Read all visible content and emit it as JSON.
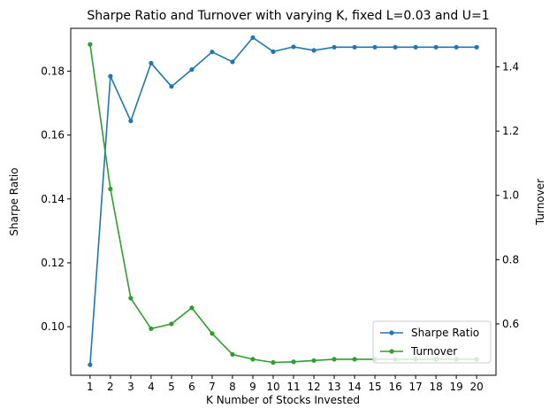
{
  "chart_data": {
    "type": "line",
    "title": "Sharpe Ratio and Turnover with varying K, fixed L=0.03 and U=1",
    "xlabel": "K Number of Stocks Invested",
    "ylabel": "Sharpe Ratio",
    "y2label": "Turnover",
    "x": [
      1,
      2,
      3,
      4,
      5,
      6,
      7,
      8,
      9,
      10,
      11,
      12,
      13,
      14,
      15,
      16,
      17,
      18,
      19,
      20
    ],
    "xticks": [
      "1",
      "2",
      "3",
      "4",
      "5",
      "6",
      "7",
      "8",
      "9",
      "10",
      "11",
      "12",
      "13",
      "14",
      "15",
      "16",
      "17",
      "18",
      "19",
      "20"
    ],
    "ylim": [
      0.0848,
      0.1934
    ],
    "yticks": [
      "0.10",
      "0.12",
      "0.14",
      "0.16",
      "0.18"
    ],
    "y2lim": [
      0.44,
      1.52
    ],
    "y2ticks": [
      "0.6",
      "0.8",
      "1.0",
      "1.2",
      "1.4"
    ],
    "legend_position": "lower-right",
    "series": [
      {
        "name": "Sharpe Ratio",
        "axis": "left",
        "color": "#1f77b4",
        "values": [
          0.0881,
          0.1784,
          0.1644,
          0.1825,
          0.1752,
          0.1805,
          0.186,
          0.1829,
          0.1905,
          0.1861,
          0.1876,
          0.1865,
          0.1875,
          0.1875,
          0.1875,
          0.1875,
          0.1875,
          0.1875,
          0.1875,
          0.1875
        ]
      },
      {
        "name": "Turnover",
        "axis": "right",
        "color": "#2ca02c",
        "values": [
          1.47,
          1.02,
          0.68,
          0.585,
          0.6,
          0.65,
          0.57,
          0.505,
          0.49,
          0.48,
          0.482,
          0.486,
          0.49,
          0.49,
          0.49,
          0.49,
          0.49,
          0.49,
          0.49,
          0.49
        ]
      }
    ]
  }
}
